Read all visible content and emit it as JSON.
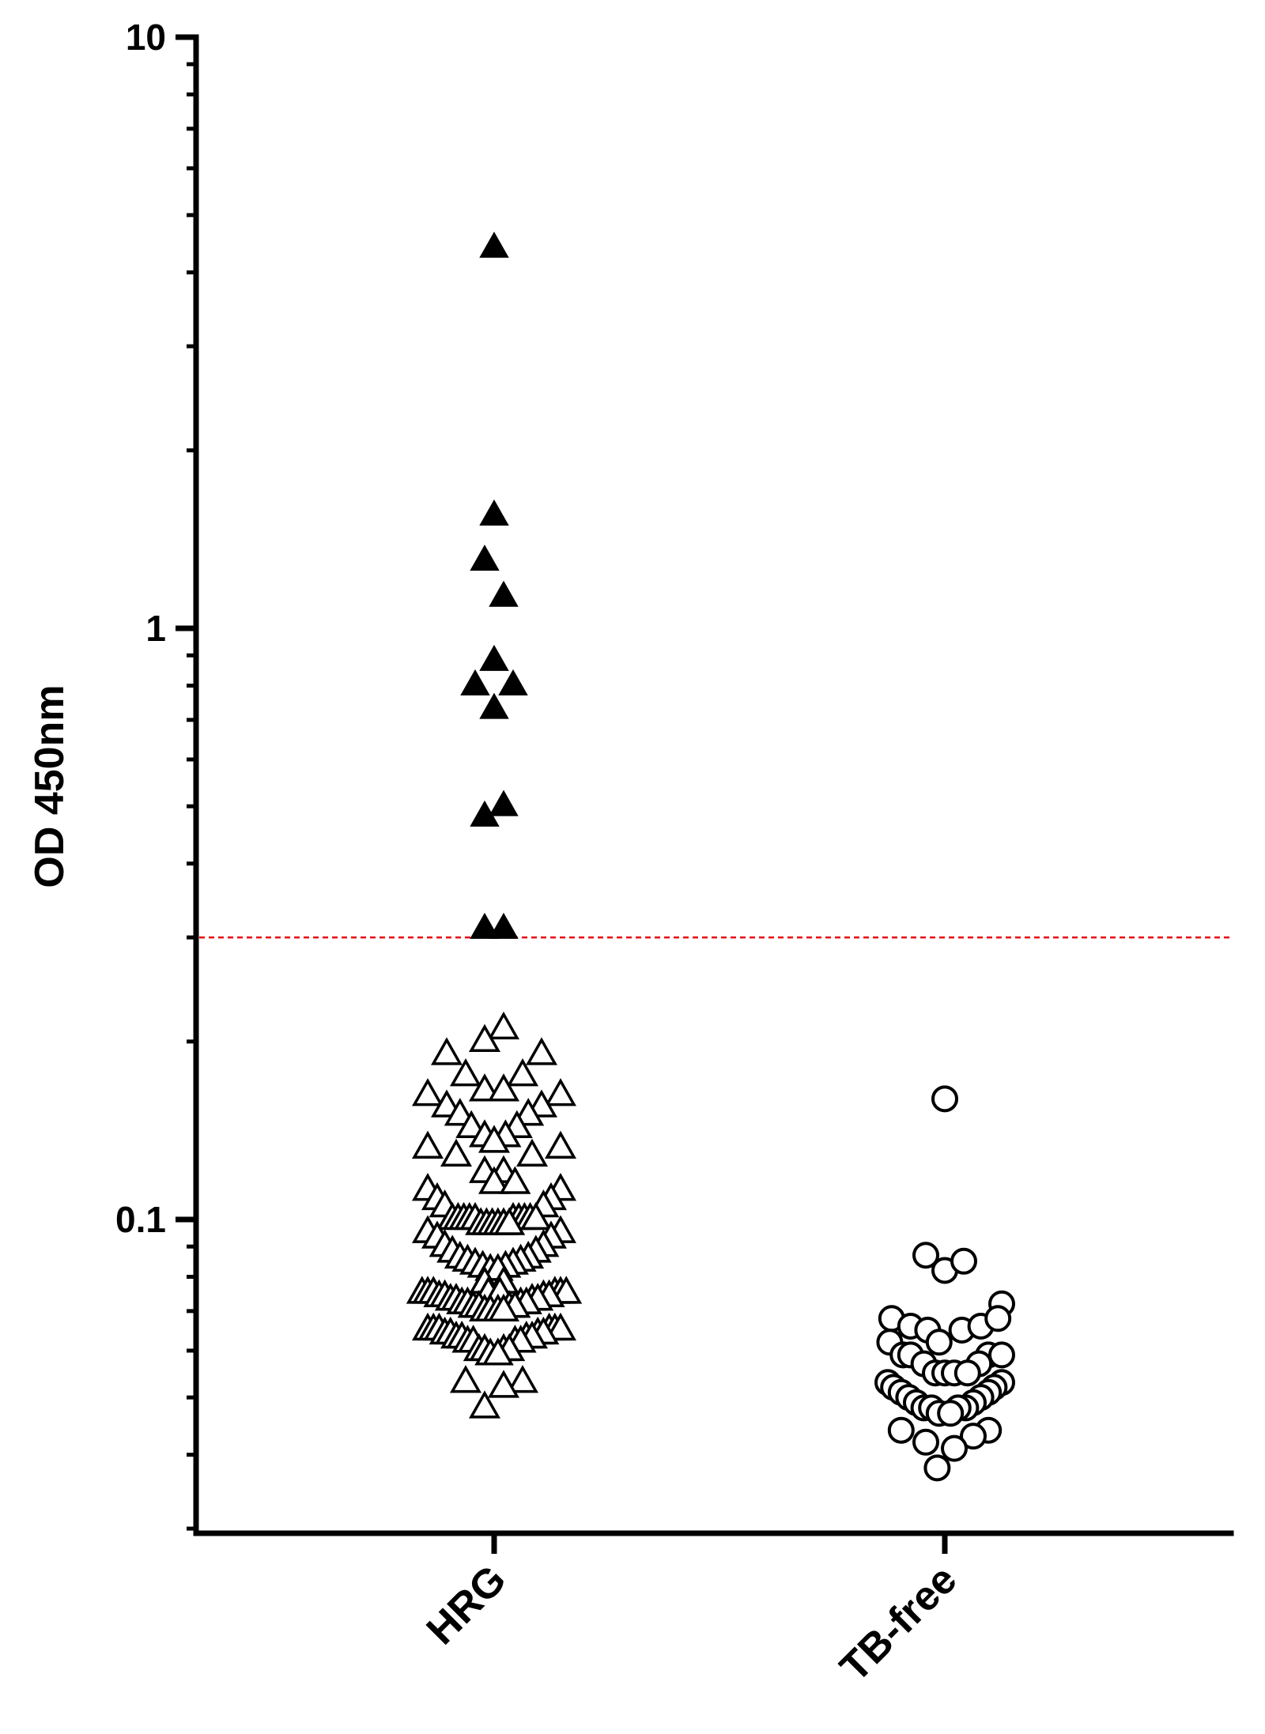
{
  "chart_data": {
    "type": "scatter",
    "ylabel": "OD 450nm",
    "yscale": "log",
    "ylim": [
      0.03,
      10
    ],
    "yticks": [
      {
        "value": 10,
        "label": "10"
      },
      {
        "value": 1,
        "label": "1"
      },
      {
        "value": 0.1,
        "label": "0.1"
      }
    ],
    "categories": [
      "HRG",
      "TB-free"
    ],
    "cutoff": {
      "value": 0.3,
      "color": "#e8000b",
      "style": "dashed"
    },
    "series": [
      {
        "category": "HRG",
        "marker": "triangle-filled",
        "points": [
          {
            "y": 4.4,
            "dx": 0
          },
          {
            "y": 1.55,
            "dx": 0
          },
          {
            "y": 1.3,
            "dx": -0.5
          },
          {
            "y": 1.13,
            "dx": 0.5
          },
          {
            "y": 0.88,
            "dx": 0
          },
          {
            "y": 0.8,
            "dx": -1
          },
          {
            "y": 0.8,
            "dx": 1
          },
          {
            "y": 0.73,
            "dx": 0
          },
          {
            "y": 0.48,
            "dx": -0.5
          },
          {
            "y": 0.5,
            "dx": 0.5
          },
          {
            "y": 0.31,
            "dx": -0.5
          },
          {
            "y": 0.31,
            "dx": 0.5
          }
        ]
      },
      {
        "category": "HRG",
        "marker": "triangle-open",
        "points": [
          {
            "y": 0.21,
            "dx": 0.5
          },
          {
            "y": 0.2,
            "dx": -0.5
          },
          {
            "y": 0.19,
            "dx": -2.5
          },
          {
            "y": 0.19,
            "dx": 2.5
          },
          {
            "y": 0.175,
            "dx": -1.5
          },
          {
            "y": 0.175,
            "dx": 1.5
          },
          {
            "y": 0.162,
            "dx": -3.5
          },
          {
            "y": 0.165,
            "dx": -0.5
          },
          {
            "y": 0.165,
            "dx": 0.5
          },
          {
            "y": 0.162,
            "dx": 3.5
          },
          {
            "y": 0.155,
            "dx": -2.5
          },
          {
            "y": 0.155,
            "dx": 2.5
          },
          {
            "y": 0.15,
            "dx": -1.8
          },
          {
            "y": 0.15,
            "dx": 1.8
          },
          {
            "y": 0.143,
            "dx": -1.2
          },
          {
            "y": 0.143,
            "dx": 1.2
          },
          {
            "y": 0.138,
            "dx": -0.5
          },
          {
            "y": 0.138,
            "dx": 0.6
          },
          {
            "y": 0.135,
            "dx": 0
          },
          {
            "y": 0.132,
            "dx": -3.5
          },
          {
            "y": 0.132,
            "dx": 3.5
          },
          {
            "y": 0.128,
            "dx": -2
          },
          {
            "y": 0.128,
            "dx": 2
          },
          {
            "y": 0.12,
            "dx": -0.5
          },
          {
            "y": 0.12,
            "dx": 0.5
          },
          {
            "y": 0.115,
            "dx": 0
          },
          {
            "y": 0.115,
            "dx": 1.1
          },
          {
            "y": 0.112,
            "dx": -3.5
          },
          {
            "y": 0.112,
            "dx": 3.5
          },
          {
            "y": 0.108,
            "dx": -3
          },
          {
            "y": 0.108,
            "dx": 3
          },
          {
            "y": 0.105,
            "dx": -2.6
          },
          {
            "y": 0.105,
            "dx": 2.6
          },
          {
            "y": 0.1,
            "dx": -2.2
          },
          {
            "y": 0.1,
            "dx": -1.9
          },
          {
            "y": 0.1,
            "dx": -1.6
          },
          {
            "y": 0.1,
            "dx": -1.3
          },
          {
            "y": 0.1,
            "dx": -1
          },
          {
            "y": 0.1,
            "dx": 1
          },
          {
            "y": 0.1,
            "dx": 1.3
          },
          {
            "y": 0.1,
            "dx": 1.6
          },
          {
            "y": 0.1,
            "dx": 1.9
          },
          {
            "y": 0.1,
            "dx": 2.2
          },
          {
            "y": 0.098,
            "dx": -0.7
          },
          {
            "y": 0.098,
            "dx": -0.4
          },
          {
            "y": 0.098,
            "dx": -0.1
          },
          {
            "y": 0.098,
            "dx": 0.2
          },
          {
            "y": 0.098,
            "dx": 0.5
          },
          {
            "y": 0.098,
            "dx": 0.8
          },
          {
            "y": 0.095,
            "dx": -3.5
          },
          {
            "y": 0.095,
            "dx": 3.5
          },
          {
            "y": 0.093,
            "dx": -3
          },
          {
            "y": 0.093,
            "dx": 3
          },
          {
            "y": 0.09,
            "dx": -2.6
          },
          {
            "y": 0.09,
            "dx": 2.6
          },
          {
            "y": 0.088,
            "dx": -2.2
          },
          {
            "y": 0.088,
            "dx": 2.2
          },
          {
            "y": 0.086,
            "dx": -1.8
          },
          {
            "y": 0.086,
            "dx": 1.8
          },
          {
            "y": 0.085,
            "dx": -1.4
          },
          {
            "y": 0.085,
            "dx": 1.4
          },
          {
            "y": 0.084,
            "dx": -1
          },
          {
            "y": 0.084,
            "dx": 1
          },
          {
            "y": 0.083,
            "dx": -0.6
          },
          {
            "y": 0.083,
            "dx": 0.6
          },
          {
            "y": 0.082,
            "dx": -0.2
          },
          {
            "y": 0.082,
            "dx": 0.2
          },
          {
            "y": 0.078,
            "dx": -0.5
          },
          {
            "y": 0.078,
            "dx": 0.5
          },
          {
            "y": 0.075,
            "dx": -0.3
          },
          {
            "y": 0.075,
            "dx": 0.3
          },
          {
            "y": 0.075,
            "dx": -3.8
          },
          {
            "y": 0.075,
            "dx": -3.5
          },
          {
            "y": 0.075,
            "dx": -3.2
          },
          {
            "y": 0.075,
            "dx": 3.2
          },
          {
            "y": 0.075,
            "dx": 3.5
          },
          {
            "y": 0.075,
            "dx": 3.8
          },
          {
            "y": 0.074,
            "dx": -2.9
          },
          {
            "y": 0.074,
            "dx": -2.6
          },
          {
            "y": 0.074,
            "dx": 2.6
          },
          {
            "y": 0.074,
            "dx": 2.9
          },
          {
            "y": 0.073,
            "dx": -2.3
          },
          {
            "y": 0.073,
            "dx": -2
          },
          {
            "y": 0.073,
            "dx": 2
          },
          {
            "y": 0.073,
            "dx": 2.3
          },
          {
            "y": 0.072,
            "dx": -1.7
          },
          {
            "y": 0.072,
            "dx": -1.4
          },
          {
            "y": 0.072,
            "dx": 1.4
          },
          {
            "y": 0.072,
            "dx": 1.7
          },
          {
            "y": 0.071,
            "dx": -1.1
          },
          {
            "y": 0.071,
            "dx": -0.8
          },
          {
            "y": 0.071,
            "dx": 0.8
          },
          {
            "y": 0.071,
            "dx": 1.1
          },
          {
            "y": 0.07,
            "dx": -0.5
          },
          {
            "y": 0.07,
            "dx": -0.2
          },
          {
            "y": 0.07,
            "dx": 0.2
          },
          {
            "y": 0.07,
            "dx": 0.5
          },
          {
            "y": 0.065,
            "dx": -3.5
          },
          {
            "y": 0.065,
            "dx": -3.2
          },
          {
            "y": 0.065,
            "dx": -2.9
          },
          {
            "y": 0.065,
            "dx": 2.9
          },
          {
            "y": 0.065,
            "dx": 3.2
          },
          {
            "y": 0.065,
            "dx": 3.5
          },
          {
            "y": 0.064,
            "dx": -2.6
          },
          {
            "y": 0.064,
            "dx": -2.3
          },
          {
            "y": 0.064,
            "dx": 2.3
          },
          {
            "y": 0.064,
            "dx": 2.6
          },
          {
            "y": 0.063,
            "dx": -2
          },
          {
            "y": 0.063,
            "dx": -1.7
          },
          {
            "y": 0.063,
            "dx": 1.7
          },
          {
            "y": 0.063,
            "dx": 2
          },
          {
            "y": 0.062,
            "dx": -1.4
          },
          {
            "y": 0.062,
            "dx": -1.1
          },
          {
            "y": 0.062,
            "dx": 1.1
          },
          {
            "y": 0.062,
            "dx": 1.4
          },
          {
            "y": 0.06,
            "dx": -0.8
          },
          {
            "y": 0.06,
            "dx": -0.5
          },
          {
            "y": 0.06,
            "dx": 0.5
          },
          {
            "y": 0.06,
            "dx": 0.8
          },
          {
            "y": 0.059,
            "dx": -0.2
          },
          {
            "y": 0.059,
            "dx": 0.2
          },
          {
            "y": 0.053,
            "dx": -1.5
          },
          {
            "y": 0.053,
            "dx": 1.5
          },
          {
            "y": 0.052,
            "dx": 0.5
          },
          {
            "y": 0.048,
            "dx": -0.5
          }
        ]
      },
      {
        "category": "TB-free",
        "marker": "circle-open",
        "points": [
          {
            "y": 0.16,
            "dx": 0
          },
          {
            "y": 0.087,
            "dx": -1
          },
          {
            "y": 0.082,
            "dx": 0
          },
          {
            "y": 0.085,
            "dx": 1
          },
          {
            "y": 0.072,
            "dx": 3
          },
          {
            "y": 0.068,
            "dx": -2.8
          },
          {
            "y": 0.066,
            "dx": -1.8
          },
          {
            "y": 0.065,
            "dx": -0.9
          },
          {
            "y": 0.065,
            "dx": 0.9
          },
          {
            "y": 0.066,
            "dx": 1.9
          },
          {
            "y": 0.068,
            "dx": 2.8
          },
          {
            "y": 0.062,
            "dx": -2.9
          },
          {
            "y": 0.062,
            "dx": -0.3
          },
          {
            "y": 0.059,
            "dx": -2.2
          },
          {
            "y": 0.059,
            "dx": -1.8
          },
          {
            "y": 0.059,
            "dx": 2.3
          },
          {
            "y": 0.059,
            "dx": 3.0
          },
          {
            "y": 0.057,
            "dx": -1.1
          },
          {
            "y": 0.057,
            "dx": 1.8
          },
          {
            "y": 0.055,
            "dx": -0.5
          },
          {
            "y": 0.055,
            "dx": 0
          },
          {
            "y": 0.055,
            "dx": 0.5
          },
          {
            "y": 0.055,
            "dx": 1.2
          },
          {
            "y": 0.053,
            "dx": -3
          },
          {
            "y": 0.053,
            "dx": 3
          },
          {
            "y": 0.052,
            "dx": -2.7
          },
          {
            "y": 0.052,
            "dx": 2.6
          },
          {
            "y": 0.051,
            "dx": -2.3
          },
          {
            "y": 0.051,
            "dx": 2.3
          },
          {
            "y": 0.05,
            "dx": -1.9
          },
          {
            "y": 0.05,
            "dx": 1.9
          },
          {
            "y": 0.049,
            "dx": -1.5
          },
          {
            "y": 0.049,
            "dx": 1.5
          },
          {
            "y": 0.048,
            "dx": -1.1
          },
          {
            "y": 0.048,
            "dx": 1.1
          },
          {
            "y": 0.048,
            "dx": -0.7
          },
          {
            "y": 0.048,
            "dx": 0.7
          },
          {
            "y": 0.047,
            "dx": -0.3
          },
          {
            "y": 0.047,
            "dx": 0.3
          },
          {
            "y": 0.044,
            "dx": -2.3
          },
          {
            "y": 0.044,
            "dx": 2.3
          },
          {
            "y": 0.043,
            "dx": 1.5
          },
          {
            "y": 0.042,
            "dx": -1.0
          },
          {
            "y": 0.041,
            "dx": 0.5
          },
          {
            "y": 0.038,
            "dx": -0.4
          }
        ]
      }
    ]
  }
}
